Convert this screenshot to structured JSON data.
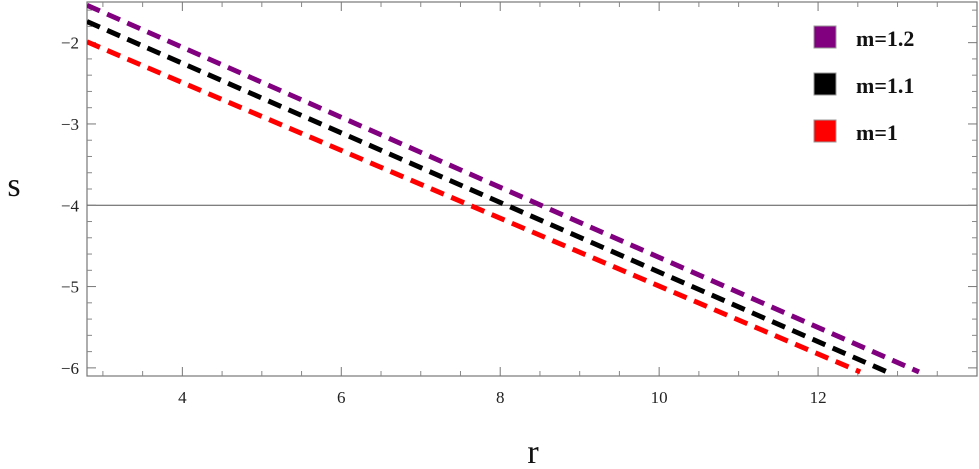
{
  "chart_data": {
    "type": "line",
    "xlabel": "r",
    "ylabel": "s",
    "xlim": [
      2.8,
      14.0
    ],
    "ylim": [
      -6.1,
      -1.5
    ],
    "x_ticks": [
      4,
      6,
      8,
      10,
      12
    ],
    "x_tick_labels": [
      "4",
      "6",
      "8",
      "10",
      "12"
    ],
    "y_ticks": [
      -2,
      -3,
      -4,
      -5,
      -6
    ],
    "y_tick_labels": [
      "−2",
      "−3",
      "−4",
      "−5",
      "−6"
    ],
    "reference_line_y": -4,
    "grid": false,
    "legend_position": "top-right",
    "series": [
      {
        "name": "m=1.2",
        "color": "#800080",
        "style": "dashed",
        "x": [
          2.8,
          13.27
        ],
        "y": [
          -1.54,
          -6.05
        ]
      },
      {
        "name": "m=1.1",
        "color": "#000000",
        "style": "dashed",
        "x": [
          2.8,
          12.87
        ],
        "y": [
          -1.74,
          -6.05
        ]
      },
      {
        "name": "m=1",
        "color": "#ff0000",
        "style": "dashed",
        "x": [
          2.8,
          12.53
        ],
        "y": [
          -1.99,
          -6.05
        ]
      }
    ]
  }
}
